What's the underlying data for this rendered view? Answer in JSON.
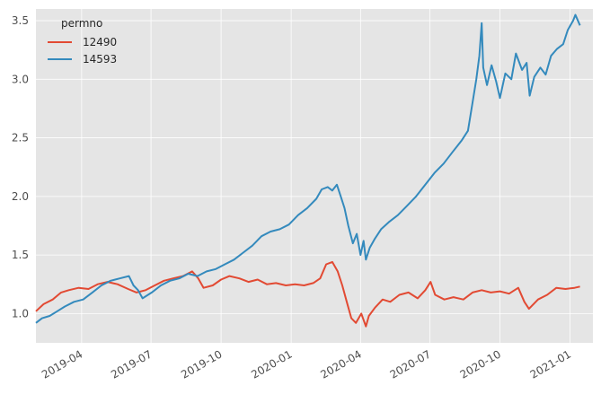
{
  "chart_data": {
    "type": "line",
    "title": "",
    "xlabel": "",
    "ylabel": "",
    "grid": true,
    "legend": {
      "title": "permno",
      "placement": "top-left"
    },
    "x_range": [
      "2019-01-31",
      "2021-01-31"
    ],
    "ylim": [
      0.75,
      3.6
    ],
    "x_ticks": [
      {
        "date": "2019-04-01",
        "label": "2019-04"
      },
      {
        "date": "2019-07-01",
        "label": "2019-07"
      },
      {
        "date": "2019-10-01",
        "label": "2019-10"
      },
      {
        "date": "2020-01-01",
        "label": "2020-01"
      },
      {
        "date": "2020-04-01",
        "label": "2020-04"
      },
      {
        "date": "2020-07-01",
        "label": "2020-07"
      },
      {
        "date": "2020-10-01",
        "label": "2020-10"
      },
      {
        "date": "2021-01-01",
        "label": "2021-01"
      }
    ],
    "y_ticks": [
      {
        "value": 1.0,
        "label": "1.0"
      },
      {
        "value": 1.5,
        "label": "1.5"
      },
      {
        "value": 2.0,
        "label": "2.0"
      },
      {
        "value": 2.5,
        "label": "2.5"
      },
      {
        "value": 3.0,
        "label": "3.0"
      },
      {
        "value": 3.5,
        "label": "3.5"
      }
    ],
    "series": [
      {
        "name": "12490",
        "color": "#e24a33",
        "points": [
          [
            "2019-01-31",
            1.02
          ],
          [
            "2019-02-10",
            1.08
          ],
          [
            "2019-02-22",
            1.12
          ],
          [
            "2019-03-05",
            1.18
          ],
          [
            "2019-03-15",
            1.2
          ],
          [
            "2019-03-28",
            1.22
          ],
          [
            "2019-04-10",
            1.21
          ],
          [
            "2019-04-22",
            1.25
          ],
          [
            "2019-05-05",
            1.27
          ],
          [
            "2019-05-18",
            1.25
          ],
          [
            "2019-06-01",
            1.21
          ],
          [
            "2019-06-12",
            1.18
          ],
          [
            "2019-06-24",
            1.2
          ],
          [
            "2019-07-06",
            1.24
          ],
          [
            "2019-07-18",
            1.28
          ],
          [
            "2019-07-30",
            1.3
          ],
          [
            "2019-08-12",
            1.32
          ],
          [
            "2019-08-24",
            1.36
          ],
          [
            "2019-09-01",
            1.3
          ],
          [
            "2019-09-08",
            1.22
          ],
          [
            "2019-09-20",
            1.24
          ],
          [
            "2019-10-01",
            1.29
          ],
          [
            "2019-10-12",
            1.32
          ],
          [
            "2019-10-25",
            1.3
          ],
          [
            "2019-11-06",
            1.27
          ],
          [
            "2019-11-18",
            1.29
          ],
          [
            "2019-11-30",
            1.25
          ],
          [
            "2019-12-12",
            1.26
          ],
          [
            "2019-12-25",
            1.24
          ],
          [
            "2020-01-06",
            1.25
          ],
          [
            "2020-01-18",
            1.24
          ],
          [
            "2020-01-30",
            1.26
          ],
          [
            "2020-02-08",
            1.3
          ],
          [
            "2020-02-16",
            1.42
          ],
          [
            "2020-02-24",
            1.44
          ],
          [
            "2020-03-02",
            1.36
          ],
          [
            "2020-03-08",
            1.24
          ],
          [
            "2020-03-14",
            1.1
          ],
          [
            "2020-03-20",
            0.96
          ],
          [
            "2020-03-26",
            0.92
          ],
          [
            "2020-04-02",
            1.0
          ],
          [
            "2020-04-08",
            0.89
          ],
          [
            "2020-04-12",
            0.98
          ],
          [
            "2020-04-20",
            1.05
          ],
          [
            "2020-04-30",
            1.12
          ],
          [
            "2020-05-10",
            1.1
          ],
          [
            "2020-05-22",
            1.16
          ],
          [
            "2020-06-03",
            1.18
          ],
          [
            "2020-06-15",
            1.13
          ],
          [
            "2020-06-25",
            1.2
          ],
          [
            "2020-07-02",
            1.27
          ],
          [
            "2020-07-08",
            1.16
          ],
          [
            "2020-07-20",
            1.12
          ],
          [
            "2020-08-01",
            1.14
          ],
          [
            "2020-08-14",
            1.12
          ],
          [
            "2020-08-26",
            1.18
          ],
          [
            "2020-09-07",
            1.2
          ],
          [
            "2020-09-19",
            1.18
          ],
          [
            "2020-10-01",
            1.19
          ],
          [
            "2020-10-13",
            1.17
          ],
          [
            "2020-10-25",
            1.22
          ],
          [
            "2020-11-02",
            1.1
          ],
          [
            "2020-11-08",
            1.04
          ],
          [
            "2020-11-20",
            1.12
          ],
          [
            "2020-12-02",
            1.16
          ],
          [
            "2020-12-14",
            1.22
          ],
          [
            "2020-12-26",
            1.21
          ],
          [
            "2021-01-07",
            1.22
          ],
          [
            "2021-01-14",
            1.23
          ]
        ]
      },
      {
        "name": "14593",
        "color": "#348abd",
        "points": [
          [
            "2019-01-31",
            0.92
          ],
          [
            "2019-02-08",
            0.96
          ],
          [
            "2019-02-18",
            0.98
          ],
          [
            "2019-02-28",
            1.02
          ],
          [
            "2019-03-10",
            1.06
          ],
          [
            "2019-03-22",
            1.1
          ],
          [
            "2019-04-03",
            1.12
          ],
          [
            "2019-04-15",
            1.18
          ],
          [
            "2019-04-27",
            1.24
          ],
          [
            "2019-05-09",
            1.28
          ],
          [
            "2019-05-21",
            1.3
          ],
          [
            "2019-06-02",
            1.32
          ],
          [
            "2019-06-08",
            1.24
          ],
          [
            "2019-06-14",
            1.2
          ],
          [
            "2019-06-20",
            1.13
          ],
          [
            "2019-07-02",
            1.18
          ],
          [
            "2019-07-14",
            1.24
          ],
          [
            "2019-07-26",
            1.28
          ],
          [
            "2019-08-07",
            1.3
          ],
          [
            "2019-08-19",
            1.34
          ],
          [
            "2019-08-31",
            1.32
          ],
          [
            "2019-09-12",
            1.36
          ],
          [
            "2019-09-24",
            1.38
          ],
          [
            "2019-10-06",
            1.42
          ],
          [
            "2019-10-18",
            1.46
          ],
          [
            "2019-10-30",
            1.52
          ],
          [
            "2019-11-11",
            1.58
          ],
          [
            "2019-11-23",
            1.66
          ],
          [
            "2019-12-05",
            1.7
          ],
          [
            "2019-12-17",
            1.72
          ],
          [
            "2019-12-29",
            1.76
          ],
          [
            "2020-01-10",
            1.84
          ],
          [
            "2020-01-22",
            1.9
          ],
          [
            "2020-02-03",
            1.98
          ],
          [
            "2020-02-10",
            2.06
          ],
          [
            "2020-02-18",
            2.08
          ],
          [
            "2020-02-24",
            2.05
          ],
          [
            "2020-03-01",
            2.1
          ],
          [
            "2020-03-06",
            2.0
          ],
          [
            "2020-03-11",
            1.9
          ],
          [
            "2020-03-16",
            1.75
          ],
          [
            "2020-03-22",
            1.6
          ],
          [
            "2020-03-27",
            1.68
          ],
          [
            "2020-04-01",
            1.5
          ],
          [
            "2020-04-05",
            1.62
          ],
          [
            "2020-04-08",
            1.46
          ],
          [
            "2020-04-13",
            1.56
          ],
          [
            "2020-04-20",
            1.64
          ],
          [
            "2020-04-28",
            1.72
          ],
          [
            "2020-05-08",
            1.78
          ],
          [
            "2020-05-20",
            1.84
          ],
          [
            "2020-06-01",
            1.92
          ],
          [
            "2020-06-13",
            2.0
          ],
          [
            "2020-06-25",
            2.1
          ],
          [
            "2020-07-07",
            2.2
          ],
          [
            "2020-07-19",
            2.28
          ],
          [
            "2020-07-31",
            2.38
          ],
          [
            "2020-08-12",
            2.48
          ],
          [
            "2020-08-20",
            2.56
          ],
          [
            "2020-08-26",
            2.8
          ],
          [
            "2020-08-31",
            3.0
          ],
          [
            "2020-09-04",
            3.2
          ],
          [
            "2020-09-07",
            3.48
          ],
          [
            "2020-09-09",
            3.1
          ],
          [
            "2020-09-14",
            2.95
          ],
          [
            "2020-09-20",
            3.12
          ],
          [
            "2020-09-26",
            2.98
          ],
          [
            "2020-10-01",
            2.84
          ],
          [
            "2020-10-08",
            3.05
          ],
          [
            "2020-10-16",
            3.0
          ],
          [
            "2020-10-22",
            3.22
          ],
          [
            "2020-10-30",
            3.08
          ],
          [
            "2020-11-05",
            3.14
          ],
          [
            "2020-11-09",
            2.86
          ],
          [
            "2020-11-15",
            3.02
          ],
          [
            "2020-11-23",
            3.1
          ],
          [
            "2020-11-30",
            3.04
          ],
          [
            "2020-12-07",
            3.2
          ],
          [
            "2020-12-15",
            3.26
          ],
          [
            "2020-12-23",
            3.3
          ],
          [
            "2020-12-29",
            3.42
          ],
          [
            "2021-01-05",
            3.5
          ],
          [
            "2021-01-08",
            3.55
          ],
          [
            "2021-01-14",
            3.46
          ]
        ]
      }
    ]
  }
}
